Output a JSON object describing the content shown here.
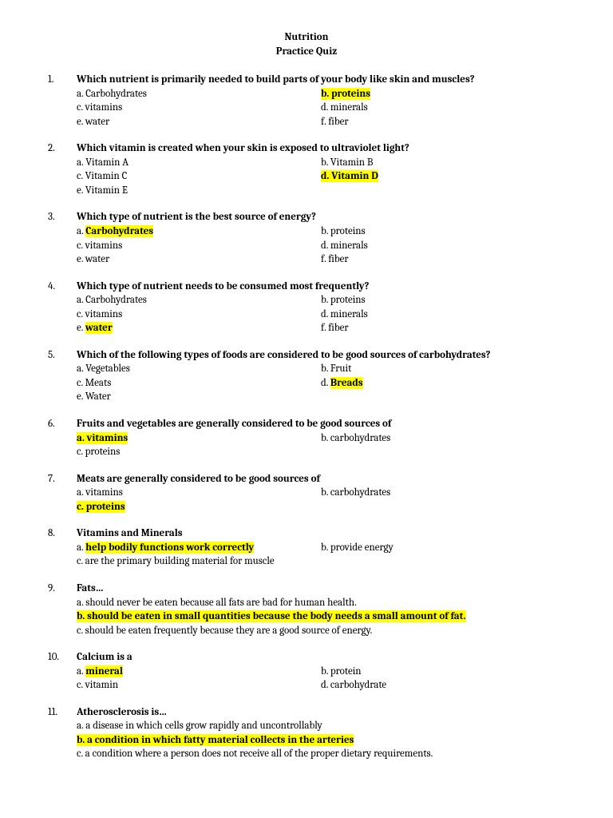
{
  "title_line1": "Nutrition",
  "title_line2": "Practice Quiz",
  "questions": [
    {
      "num": "1.",
      "text": "Which nutrient is primarily needed to build parts of your body like skin and muscles?",
      "layout": "2col",
      "left": [
        {
          "t": "a.  Carbohydrates",
          "hl": false
        },
        {
          "t": "c.  vitamins",
          "hl": false
        },
        {
          "t": "e.  water",
          "hl": false
        }
      ],
      "right": [
        {
          "t": "b.  proteins",
          "hl": true
        },
        {
          "t": "d.  minerals",
          "hl": false
        },
        {
          "t": "f.  fiber",
          "hl": false
        }
      ]
    },
    {
      "num": "2.",
      "text": "Which vitamin is created when your skin is exposed to ultraviolet light?",
      "layout": "2col",
      "left": [
        {
          "t": "a.  Vitamin A",
          "hl": false
        },
        {
          "t": "c.  Vitamin C",
          "hl": false
        },
        {
          "t": "e.  Vitamin E",
          "hl": false
        }
      ],
      "right": [
        {
          "t": "b.  Vitamin B",
          "hl": false
        },
        {
          "t": "d.  Vitamin D",
          "hl": true
        }
      ]
    },
    {
      "num": "3.",
      "text": "Which type of nutrient is the best source of energy?",
      "layout": "2col",
      "left": [
        {
          "pre": "a.  ",
          "t": "Carbohydrates",
          "hl_part": true
        },
        {
          "t": "c.  vitamins",
          "hl": false
        },
        {
          "t": "e.  water",
          "hl": false
        }
      ],
      "right": [
        {
          "t": "b.  proteins",
          "hl": false
        },
        {
          "t": "d.  minerals",
          "hl": false
        },
        {
          "t": "f.  fiber",
          "hl": false
        }
      ]
    },
    {
      "num": "4.",
      "text": "Which type of nutrient needs to be consumed most frequently?",
      "layout": "2col",
      "left": [
        {
          "t": "a.  Carbohydrates",
          "hl": false
        },
        {
          "t": "c.  vitamins",
          "hl": false
        },
        {
          "pre": "e.  ",
          "t": "water",
          "hl_part": true
        }
      ],
      "right": [
        {
          "t": "b.  proteins",
          "hl": false
        },
        {
          "t": "d.  minerals",
          "hl": false
        },
        {
          "t": "f.  fiber",
          "hl": false
        }
      ]
    },
    {
      "num": "5.",
      "text": "Which of the following types of foods are considered to be good sources of carbohydrates?",
      "layout": "2col",
      "left": [
        {
          "t": "a.  Vegetables",
          "hl": false
        },
        {
          "t": "c.  Meats",
          "hl": false
        },
        {
          "t": "e.  Water",
          "hl": false
        }
      ],
      "right": [
        {
          "t": "b.  Fruit",
          "hl": false
        },
        {
          "pre": "d.  ",
          "t": "Breads",
          "hl_part": true
        }
      ]
    },
    {
      "num": "6.",
      "text": " Fruits and vegetables are generally considered to be good sources of",
      "layout": "2col",
      "left": [
        {
          "t": "a.  vitamins",
          "hl": true
        },
        {
          "t": "c.  proteins",
          "hl": false
        }
      ],
      "right": [
        {
          "t": "b.  carbohydrates",
          "hl": false
        }
      ]
    },
    {
      "num": "7.",
      "text": " Meats are generally considered to be good sources of",
      "layout": "2col",
      "left": [
        {
          "t": "a.  vitamins",
          "hl": false
        },
        {
          "t": "c.  proteins",
          "hl": true
        }
      ],
      "right": [
        {
          "t": "b.  carbohydrates",
          "hl": false
        }
      ]
    },
    {
      "num": "8.",
      "text": "Vitamins and Minerals",
      "layout": "custom8",
      "r1_left_pre": "a.  ",
      "r1_left": "help bodily functions work correctly",
      "r1_right": "b.  provide energy",
      "r2": "c.  are the primary building material for muscle"
    },
    {
      "num": "9.",
      "text": "Fats…",
      "layout": "single",
      "rows": [
        {
          "t": "a.  should never be eaten because all fats are bad for human health.",
          "hl": false
        },
        {
          "t": "b.  should be eaten in small quantities because the body needs a small amount of fat.",
          "hl": true
        },
        {
          "t": "c.  should be eaten frequently because they are a good source of energy.",
          "hl": false
        }
      ]
    },
    {
      "num": "10.",
      "text": "Calcium is a",
      "layout": "2col",
      "left": [
        {
          "pre": "a.  ",
          "t": "mineral",
          "hl_part": true
        },
        {
          "t": "c.  vitamin",
          "hl": false
        }
      ],
      "right": [
        {
          "t": "b.  protein",
          "hl": false
        },
        {
          "t": "d.  carbohydrate",
          "hl": false
        }
      ]
    },
    {
      "num": "11.",
      "text": "Atherosclerosis is…",
      "layout": "single",
      "rows": [
        {
          "t": "a.  a disease in which cells grow rapidly and uncontrollably",
          "hl": false
        },
        {
          "t": "b.  a condition in which fatty material collects in the arteries",
          "hl": true
        },
        {
          "t": "c.  a condition where a person does not receive all of the proper dietary requirements.",
          "hl": false
        }
      ]
    }
  ]
}
